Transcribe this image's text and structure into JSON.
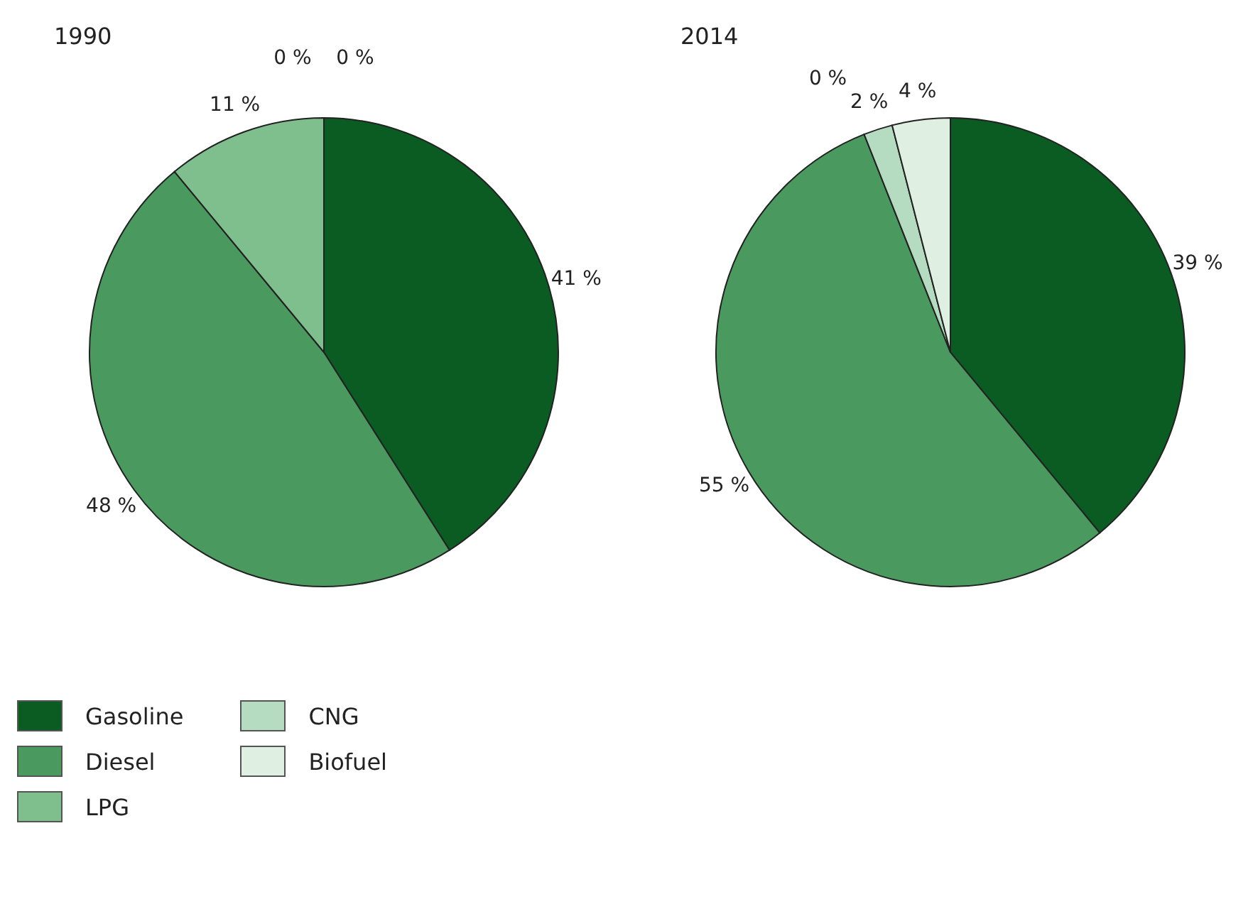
{
  "chart_data": {
    "type": "pie",
    "categories": [
      "Gasoline",
      "Diesel",
      "LPG",
      "CNG",
      "Biofuel"
    ],
    "colors": [
      "#0a5c23",
      "#4a9a5f",
      "#7fbf8e",
      "#b5dcc0",
      "#dff0e3"
    ],
    "legend": "bottom",
    "series": [
      {
        "name": "1990",
        "values": [
          41,
          48,
          11,
          0,
          0
        ],
        "value_labels": [
          "41 %",
          "48 %",
          "11 %",
          "0 %",
          "0 %"
        ]
      },
      {
        "name": "2014",
        "values": [
          39,
          55,
          0,
          2,
          4
        ],
        "value_labels": [
          "39 %",
          "55 %",
          "0 %",
          "2 %",
          "4 %"
        ]
      }
    ]
  }
}
